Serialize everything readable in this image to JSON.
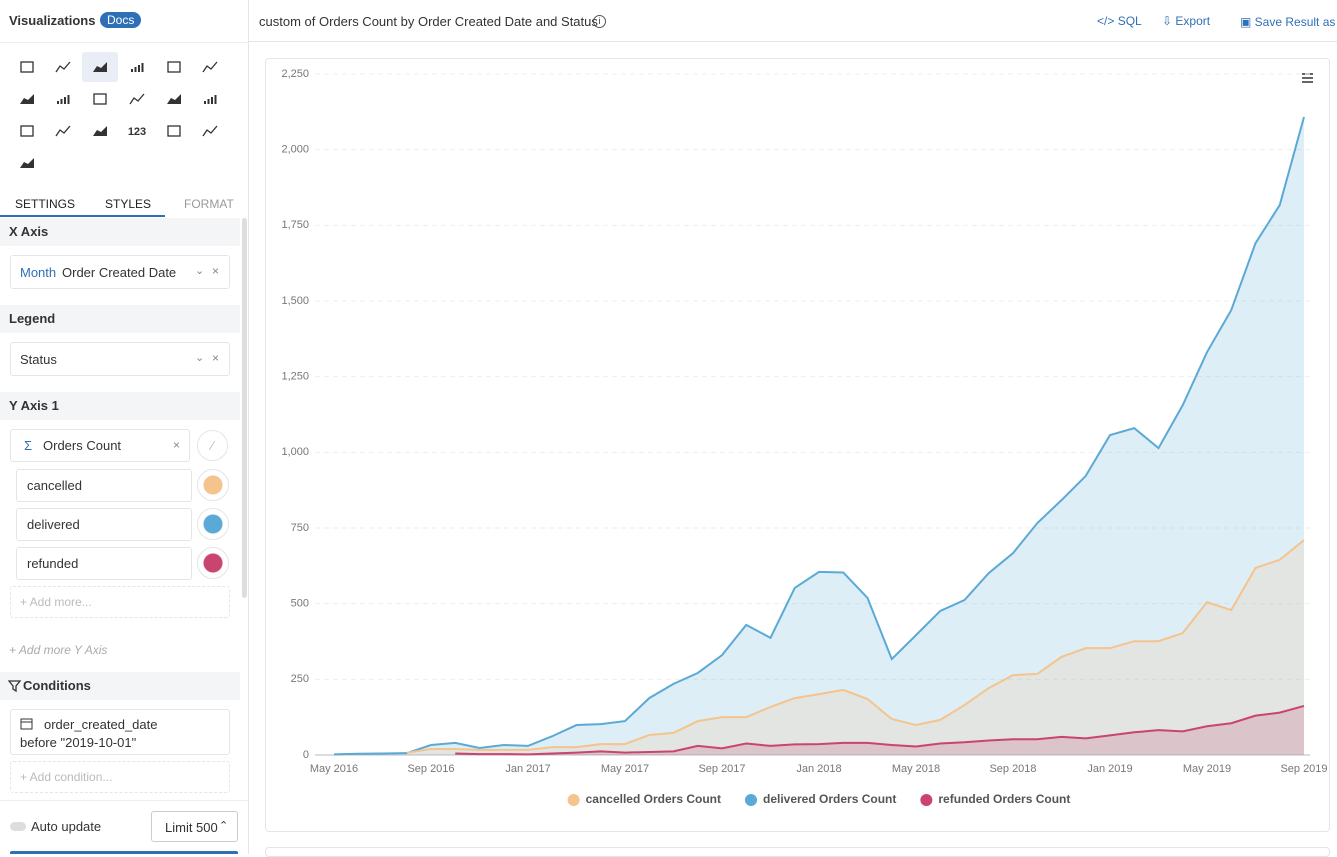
{
  "sidebar": {
    "title": "Visualizations",
    "docs": "Docs",
    "icon_text": "123",
    "tabs": [
      "SETTINGS",
      "STYLES",
      "FORMAT"
    ],
    "x_axis": {
      "label": "X Axis",
      "field_prefix": "Month",
      "field": "Order Created Date"
    },
    "legend": {
      "label": "Legend",
      "field": "Status"
    },
    "y_axis": {
      "label": "Y Axis 1",
      "field": "Orders Count",
      "items": [
        "cancelled",
        "delivered",
        "refunded"
      ],
      "add_more": "+ Add more...",
      "add_axis": "+ Add more Y Axis"
    },
    "conditions": {
      "label": "Conditions",
      "field": "order_created_date",
      "value": "before \"2019-10-01\"",
      "add": "+ Add condition..."
    },
    "auto_update": "Auto update",
    "limit": "Limit 500"
  },
  "toolbar": {
    "title": "custom of Orders Count by Order Created Date and Status",
    "sql": "SQL",
    "export": "Export",
    "save": "Save Result as"
  },
  "chart_data": {
    "type": "area",
    "categories": [
      "May 2016",
      null,
      null,
      null,
      "Sep 2016",
      null,
      null,
      null,
      "Jan 2017",
      null,
      null,
      null,
      "May 2017",
      null,
      null,
      null,
      "Sep 2017",
      null,
      null,
      null,
      "Jan 2018",
      null,
      null,
      null,
      "May 2018",
      null,
      null,
      null,
      "Sep 2018",
      null,
      null,
      null,
      "Jan 2019",
      null,
      null,
      null,
      "May 2019",
      null,
      null,
      null,
      "Sep 2019"
    ],
    "series": [
      {
        "name": "cancelled Orders Count",
        "color": "#f5c38c",
        "values": [
          null,
          null,
          null,
          7,
          20,
          20,
          17,
          17,
          17,
          26,
          26,
          36,
          36,
          66,
          73,
          112,
          125,
          125,
          159,
          188,
          201,
          215,
          185,
          119,
          99,
          116,
          165,
          221,
          264,
          268,
          324,
          353,
          353,
          376,
          376,
          403,
          505,
          479,
          618,
          645,
          710
        ]
      },
      {
        "name": "delivered Orders Count",
        "color": "#5aa9d6",
        "values": [
          2,
          4,
          5,
          6,
          33,
          40,
          23,
          33,
          30,
          62,
          99,
          102,
          112,
          188,
          235,
          271,
          330,
          430,
          387,
          552,
          605,
          603,
          519,
          317,
          396,
          476,
          512,
          601,
          667,
          766,
          842,
          922,
          1057,
          1080,
          1014,
          1156,
          1331,
          1470,
          1691,
          1817,
          2108
        ]
      },
      {
        "name": "refunded Orders Count",
        "color": "#c9446f",
        "values": [
          null,
          null,
          null,
          null,
          null,
          5,
          3,
          3,
          2,
          5,
          8,
          12,
          8,
          10,
          12,
          30,
          22,
          38,
          30,
          35,
          36,
          40,
          40,
          33,
          28,
          38,
          42,
          48,
          52,
          52,
          60,
          55,
          65,
          75,
          82,
          78,
          95,
          105,
          130,
          140,
          162
        ]
      }
    ],
    "ylim": [
      0,
      2250
    ],
    "yticks": [
      0,
      250,
      500,
      750,
      {
        "value": 1000,
        "label": "1,000"
      },
      {
        "value": 1250,
        "label": "1,250"
      },
      {
        "value": 1500,
        "label": "1,500"
      },
      {
        "value": 1750,
        "label": "1,750"
      },
      {
        "value": 2000,
        "label": "2,000"
      },
      {
        "value": 2250,
        "label": "2,250"
      }
    ],
    "grid": true,
    "legend": "bottom"
  }
}
